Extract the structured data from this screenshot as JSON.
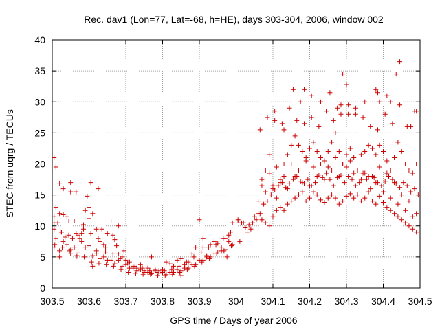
{
  "chart_data": {
    "type": "scatter",
    "title": "Rec. dav1 (Lon=77, Lat=-68, h=HE), days 303-304, 2006, window 002",
    "xlabel": "GPS time / Days of year 2006",
    "ylabel": "STEC from uqrg / TECUs",
    "xlim": [
      303.5,
      304.5
    ],
    "ylim": [
      0,
      40
    ],
    "xticks": [
      303.5,
      303.6,
      303.7,
      303.8,
      303.9,
      304,
      304.1,
      304.2,
      304.3,
      304.4,
      304.5
    ],
    "xtick_labels": [
      "303.5",
      "303.6",
      "303.7",
      "303.8",
      "303.9",
      "304",
      "304.1",
      "304.2",
      "304.3",
      "304.4",
      "304.5"
    ],
    "yticks": [
      0,
      5,
      10,
      15,
      20,
      25,
      30,
      35,
      40
    ],
    "ytick_labels": [
      "0",
      "5",
      "10",
      "15",
      "20",
      "25",
      "30",
      "35",
      "40"
    ],
    "grid": true,
    "legend": "none",
    "marker": "+",
    "color": "#cc0000",
    "series": [
      {
        "x": [
          303.505,
          303.505,
          303.51,
          303.51,
          303.515,
          303.52,
          303.52,
          303.525,
          303.53,
          303.53,
          303.535,
          303.54,
          303.545,
          303.55,
          303.55,
          303.555,
          303.56,
          303.565,
          303.57,
          303.575,
          303.58,
          303.585,
          303.59,
          303.595,
          303.6,
          303.605,
          303.61,
          303.62,
          303.625,
          303.63,
          303.635,
          303.64,
          303.645,
          303.65,
          303.66,
          303.665,
          303.67,
          303.675,
          303.68,
          303.69,
          303.695,
          303.7,
          303.71,
          303.72,
          303.73,
          303.74,
          303.75,
          303.76,
          303.77,
          303.78,
          303.79,
          303.8,
          303.81,
          303.82,
          303.83,
          303.84,
          303.85,
          303.86,
          303.87,
          303.88,
          303.89,
          303.9,
          303.91,
          303.92,
          303.93,
          303.94,
          303.95,
          303.96,
          303.97,
          303.98,
          303.99,
          303.505,
          303.52,
          303.54,
          303.56,
          303.58,
          303.6,
          303.62,
          303.64,
          303.66,
          303.68,
          303.7,
          303.72,
          303.74,
          303.76,
          303.78,
          303.8,
          303.82,
          303.84,
          303.86,
          303.88,
          303.9,
          303.92,
          303.94,
          303.96,
          303.98,
          303.51,
          303.53,
          303.55,
          303.57,
          303.59,
          303.61,
          303.63,
          303.65,
          303.67,
          303.69,
          303.71,
          303.73,
          303.75,
          303.77,
          303.79,
          303.81,
          303.83,
          303.85,
          303.87,
          303.89,
          303.91,
          303.93,
          303.95,
          303.97,
          303.99,
          303.505,
          303.525,
          303.545,
          303.565,
          303.585,
          303.605,
          303.625,
          303.645,
          303.665,
          303.685,
          303.705,
          303.725,
          303.745,
          303.765,
          303.785,
          303.805,
          303.825,
          303.845,
          303.865,
          303.885,
          303.905,
          303.925,
          303.945,
          303.965,
          303.985,
          303.507,
          303.527,
          303.547,
          303.567,
          303.587,
          303.607,
          303.627,
          303.647,
          303.667,
          303.687,
          303.707,
          303.727,
          303.747,
          303.767,
          303.787,
          303.807,
          303.827,
          303.847,
          303.867,
          303.887,
          303.907,
          303.927,
          303.947,
          303.967,
          303.987,
          303.505,
          303.52,
          303.55,
          303.6,
          303.61,
          303.62,
          303.68,
          303.85,
          303.91,
          303.975,
          304.005,
          304.01,
          304.02,
          304.03,
          304.04,
          304.05,
          304.06,
          304.07,
          304.08,
          304.09,
          304.1,
          304.11,
          304.12,
          304.13,
          304.14,
          304.15,
          304.16,
          304.17,
          304.18,
          304.19,
          304.2,
          304.21,
          304.22,
          304.23,
          304.24,
          304.25,
          304.26,
          304.27,
          304.28,
          304.29,
          304.3,
          304.31,
          304.32,
          304.33,
          304.34,
          304.35,
          304.36,
          304.37,
          304.38,
          304.39,
          304.4,
          304.41,
          304.42,
          304.43,
          304.44,
          304.45,
          304.46,
          304.47,
          304.48,
          304.49,
          304.005,
          304.015,
          304.025,
          304.035,
          304.045,
          304.055,
          304.065,
          304.075,
          304.085,
          304.095,
          304.105,
          304.115,
          304.125,
          304.135,
          304.145,
          304.155,
          304.165,
          304.175,
          304.185,
          304.195,
          304.205,
          304.215,
          304.225,
          304.235,
          304.245,
          304.255,
          304.265,
          304.275,
          304.285,
          304.295,
          304.305,
          304.315,
          304.325,
          304.335,
          304.345,
          304.355,
          304.365,
          304.375,
          304.385,
          304.395,
          304.405,
          304.415,
          304.425,
          304.435,
          304.445,
          304.455,
          304.465,
          304.475,
          304.485,
          304.495,
          304.06,
          304.07,
          304.08,
          304.09,
          304.1,
          304.11,
          304.12,
          304.13,
          304.14,
          304.15,
          304.16,
          304.17,
          304.18,
          304.19,
          304.2,
          304.21,
          304.22,
          304.23,
          304.24,
          304.25,
          304.26,
          304.27,
          304.28,
          304.29,
          304.3,
          304.31,
          304.32,
          304.33,
          304.34,
          304.35,
          304.36,
          304.37,
          304.38,
          304.39,
          304.4,
          304.41,
          304.42,
          304.43,
          304.44,
          304.45,
          304.46,
          304.47,
          304.48,
          304.49,
          304.065,
          304.085,
          304.105,
          304.125,
          304.145,
          304.165,
          304.185,
          304.205,
          304.225,
          304.245,
          304.265,
          304.285,
          304.305,
          304.325,
          304.345,
          304.365,
          304.385,
          304.405,
          304.425,
          304.445,
          304.465,
          304.485,
          304.07,
          304.09,
          304.11,
          304.13,
          304.15,
          304.17,
          304.19,
          304.21,
          304.23,
          304.25,
          304.27,
          304.29,
          304.31,
          304.33,
          304.35,
          304.37,
          304.39,
          304.41,
          304.43,
          304.45,
          304.47,
          304.49,
          304.08,
          304.1,
          304.12,
          304.14,
          304.16,
          304.18,
          304.2,
          304.22,
          304.24,
          304.26,
          304.28,
          304.3,
          304.32,
          304.34,
          304.36,
          304.38,
          304.4,
          304.42,
          304.44,
          304.46,
          304.48,
          304.105,
          304.13,
          304.155,
          304.175,
          304.185,
          304.205,
          304.23,
          304.255,
          304.275,
          304.285,
          304.29,
          304.3,
          304.305,
          304.325,
          304.35,
          304.38,
          304.385,
          304.39,
          304.41,
          304.42,
          304.435,
          304.445,
          304.475,
          304.49
        ],
        "y": [
          11.5,
          21.0,
          19.5,
          13.0,
          10.5,
          16.8,
          12.0,
          9.0,
          16.0,
          11.8,
          8.2,
          11.5,
          10.8,
          17.0,
          15.5,
          8.0,
          10.8,
          15.5,
          8.5,
          8.0,
          8.8,
          10.2,
          12.5,
          14.8,
          11.2,
          17.0,
          12.0,
          6.0,
          16.0,
          7.5,
          9.5,
          7.0,
          5.8,
          8.8,
          10.8,
          8.5,
          7.8,
          6.8,
          5.5,
          5.0,
          6.0,
          4.5,
          4.2,
          3.5,
          3.2,
          3.8,
          2.8,
          3.2,
          5.0,
          3.0,
          2.8,
          3.0,
          4.2,
          4.0,
          3.5,
          4.5,
          4.8,
          3.8,
          4.2,
          5.5,
          6.5,
          11.0,
          6.5,
          5.2,
          7.0,
          7.5,
          7.2,
          6.0,
          8.0,
          8.5,
          10.5,
          9.5,
          6.0,
          7.0,
          6.5,
          7.5,
          6.8,
          5.5,
          5.0,
          4.5,
          4.5,
          3.8,
          3.2,
          3.0,
          2.5,
          2.8,
          2.5,
          2.5,
          3.0,
          3.2,
          3.8,
          4.5,
          5.0,
          5.5,
          6.5,
          7.5,
          8.0,
          7.5,
          6.2,
          5.8,
          6.5,
          5.2,
          4.8,
          4.5,
          4.0,
          3.5,
          3.2,
          2.8,
          2.5,
          2.4,
          2.3,
          2.2,
          2.5,
          2.8,
          3.2,
          3.8,
          4.5,
          5.0,
          5.8,
          6.2,
          7.0,
          10.5,
          9.0,
          8.5,
          8.8,
          9.5,
          8.8,
          8.0,
          6.5,
          5.5,
          4.8,
          4.0,
          3.5,
          3.2,
          2.8,
          2.5,
          2.8,
          3.0,
          3.5,
          4.2,
          5.0,
          5.8,
          6.5,
          7.0,
          8.0,
          9.0,
          7.0,
          6.5,
          6.0,
          5.2,
          5.0,
          4.2,
          4.0,
          3.8,
          3.5,
          3.0,
          2.5,
          2.3,
          2.2,
          2.2,
          2.0,
          2.0,
          2.2,
          2.5,
          3.0,
          3.5,
          4.2,
          4.8,
          5.5,
          6.0,
          6.8,
          6.5,
          5.0,
          5.5,
          13.0,
          3.5,
          9.5,
          10.0,
          2.0,
          8.0,
          5.0,
          10.8,
          7.5,
          10.5,
          9.0,
          9.5,
          11.5,
          14.0,
          16.5,
          19.0,
          21.5,
          16.0,
          14.5,
          17.0,
          20.0,
          21.5,
          23.0,
          24.5,
          23.0,
          22.0,
          21.0,
          22.5,
          23.5,
          22.0,
          21.0,
          20.5,
          22.0,
          23.5,
          25.0,
          22.0,
          20.0,
          21.5,
          22.5,
          21.0,
          19.0,
          21.5,
          22.0,
          23.0,
          22.5,
          21.5,
          23.0,
          22.0,
          20.5,
          19.0,
          21.0,
          23.5,
          22.0,
          20.0,
          19.0,
          18.5,
          20.0,
          11.0,
          10.5,
          9.8,
          10.2,
          10.5,
          11.0,
          12.0,
          13.5,
          14.0,
          15.0,
          15.8,
          16.5,
          17.0,
          16.2,
          16.8,
          17.5,
          18.0,
          17.2,
          16.8,
          17.5,
          16.5,
          17.0,
          18.2,
          17.8,
          18.5,
          17.5,
          16.5,
          17.8,
          18.2,
          17.0,
          18.0,
          17.5,
          16.5,
          17.0,
          18.5,
          17.5,
          16.0,
          17.8,
          17.0,
          16.5,
          17.2,
          18.0,
          17.5,
          16.8,
          16.2,
          17.0,
          16.5,
          15.5,
          16.0,
          15.0,
          12.0,
          11.0,
          10.5,
          10.0,
          11.5,
          12.5,
          13.0,
          12.5,
          13.5,
          14.0,
          14.5,
          15.0,
          15.5,
          14.0,
          14.5,
          15.5,
          15.0,
          14.2,
          13.8,
          14.5,
          15.0,
          14.5,
          13.5,
          14.0,
          14.8,
          15.2,
          14.5,
          15.0,
          14.0,
          14.5,
          15.5,
          14.0,
          13.5,
          14.8,
          13.8,
          13.0,
          12.5,
          12.0,
          11.5,
          11.0,
          10.5,
          10.0,
          9.5,
          9.0,
          25.5,
          27.5,
          28.5,
          26.5,
          29.0,
          27.0,
          26.5,
          27.5,
          26.0,
          28.5,
          27.0,
          29.5,
          28.0,
          29.0,
          27.5,
          26.0,
          25.5,
          28.0,
          26.5,
          29.5,
          26.0,
          28.5,
          17.5,
          18.5,
          19.5,
          18.0,
          20.0,
          19.0,
          20.5,
          19.5,
          20.0,
          19.5,
          21.0,
          20.0,
          20.5,
          19.0,
          18.5,
          18.0,
          19.5,
          18.5,
          17.0,
          15.0,
          14.0,
          12.0,
          15.5,
          16.5,
          17.5,
          16.0,
          18.0,
          17.0,
          16.5,
          18.0,
          17.5,
          19.0,
          18.0,
          19.5,
          18.5,
          17.5,
          18.0,
          17.0,
          15.5,
          14.5,
          13.5,
          12.5,
          11.5,
          27.0,
          25.5,
          32.0,
          30.0,
          32.0,
          31.0,
          30.0,
          31.5,
          29.0,
          28.0,
          34.5,
          32.8,
          29.5,
          28.0,
          30.0,
          32.0,
          31.5,
          30.0,
          31.0,
          30.0,
          34.5,
          36.5,
          26.0,
          28.5
        ]
      }
    ]
  }
}
